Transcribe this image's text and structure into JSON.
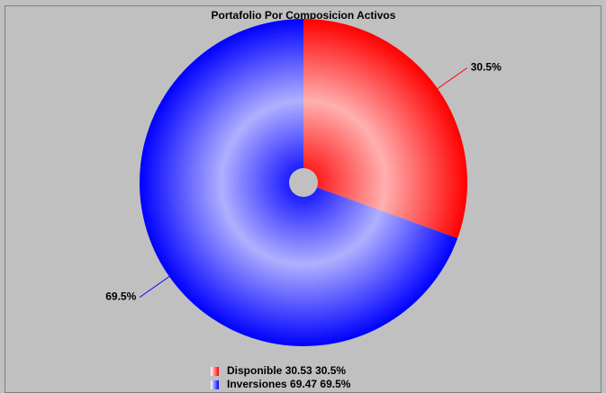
{
  "chart_data": {
    "type": "pie",
    "title": "Portafolio Por Composicion Activos",
    "categories": [
      "Disponible",
      "Inversiones"
    ],
    "values": [
      30.53,
      69.47
    ],
    "value_labels": [
      "30.5%",
      "69.5%"
    ],
    "colors": [
      "#ff0000",
      "#0000ff"
    ]
  }
}
